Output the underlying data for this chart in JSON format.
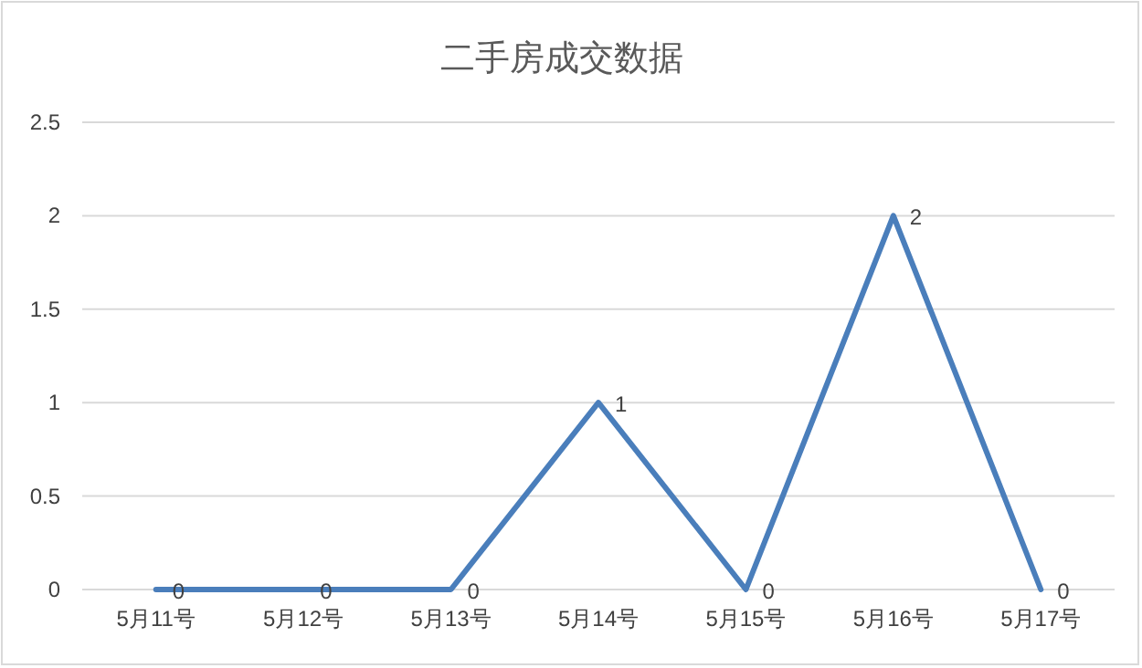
{
  "chart_data": {
    "type": "line",
    "title": "二手房成交数据",
    "categories": [
      "5月11号",
      "5月12号",
      "5月13号",
      "5月14号",
      "5月15号",
      "5月16号",
      "5月17号"
    ],
    "values": [
      0,
      0,
      0,
      1,
      0,
      2,
      0
    ],
    "color": "#4a7ebb",
    "ylim": [
      0,
      2.5
    ],
    "yticks": [
      0,
      0.5,
      1,
      1.5,
      2,
      2.5
    ],
    "grid": "y",
    "data_labels": true
  }
}
